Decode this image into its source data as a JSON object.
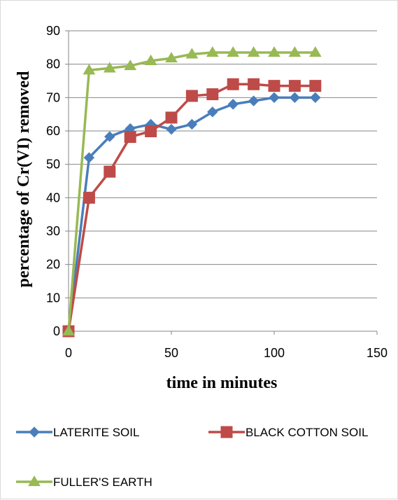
{
  "chart_data": {
    "type": "line",
    "xlabel": "time in minutes",
    "ylabel": "percentage of Cr(VI) removed",
    "xlim": [
      0,
      150
    ],
    "ylim": [
      0,
      90
    ],
    "xticks": [
      0,
      50,
      100,
      150
    ],
    "yticks": [
      0,
      10,
      20,
      30,
      40,
      50,
      60,
      70,
      80,
      90
    ],
    "grid": "horizontal",
    "legend_position": "bottom",
    "series": [
      {
        "name": "LATERITE SOIL",
        "color": "#4a7ebb",
        "marker": "diamond",
        "x": [
          0,
          10,
          20,
          30,
          40,
          50,
          60,
          70,
          80,
          90,
          100,
          110,
          120
        ],
        "y": [
          0,
          52,
          58.3,
          60.7,
          62,
          60.5,
          62,
          65.7,
          68,
          69,
          70,
          70,
          70
        ]
      },
      {
        "name": "BLACK COTTON SOIL",
        "color": "#be4b48",
        "marker": "square",
        "x": [
          0,
          10,
          20,
          30,
          40,
          50,
          60,
          70,
          80,
          90,
          100,
          110,
          120
        ],
        "y": [
          0,
          40,
          47.8,
          58.2,
          59.9,
          64,
          70.5,
          71,
          74,
          74,
          73.5,
          73.5,
          73.5
        ]
      },
      {
        "name": "FULLER'S EARTH",
        "color": "#98b954",
        "marker": "triangle",
        "x": [
          0,
          10,
          20,
          30,
          40,
          50,
          60,
          70,
          80,
          90,
          100,
          110,
          120
        ],
        "y": [
          0,
          78.2,
          78.8,
          79.5,
          81,
          81.8,
          83,
          83.5,
          83.5,
          83.5,
          83.5,
          83.5,
          83.5
        ]
      }
    ]
  }
}
